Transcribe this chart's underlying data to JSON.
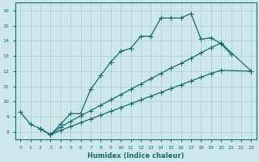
{
  "xlabel": "Humidex (Indice chaleur)",
  "bg_color": "#cde8e8",
  "grid_color": "#aacece",
  "line_color": "#1a6b6b",
  "xlim": [
    -0.5,
    23.5
  ],
  "ylim": [
    7.5,
    16.5
  ],
  "xticks": [
    0,
    1,
    2,
    3,
    4,
    5,
    6,
    7,
    8,
    9,
    10,
    11,
    12,
    13,
    14,
    15,
    16,
    17,
    18,
    19,
    20,
    21,
    22,
    23
  ],
  "yticks": [
    8,
    9,
    10,
    11,
    12,
    13,
    14,
    15,
    16
  ],
  "line1_x": [
    0,
    1,
    2,
    3,
    4,
    5,
    6,
    7,
    8,
    9,
    10,
    11,
    12,
    13,
    14,
    15,
    16,
    17,
    18,
    19,
    20,
    21
  ],
  "line1_y": [
    9.3,
    8.5,
    8.2,
    7.8,
    8.5,
    9.2,
    9.2,
    10.8,
    11.7,
    12.6,
    13.3,
    13.5,
    14.3,
    14.3,
    15.5,
    15.5,
    15.5,
    15.8,
    14.1,
    14.2,
    13.8,
    13.1
  ],
  "line2_x": [
    2,
    3,
    4,
    5,
    6,
    7,
    8,
    9,
    10,
    11,
    12,
    13,
    14,
    15,
    16,
    17,
    18,
    19,
    20,
    23
  ],
  "line2_y": [
    8.2,
    7.8,
    8.3,
    8.7,
    9.05,
    9.4,
    9.75,
    10.1,
    10.45,
    10.8,
    11.15,
    11.5,
    11.85,
    12.2,
    12.5,
    12.85,
    13.2,
    13.55,
    13.85,
    12.0
  ],
  "line3_x": [
    2,
    3,
    4,
    5,
    6,
    7,
    8,
    9,
    10,
    11,
    12,
    13,
    14,
    15,
    16,
    17,
    18,
    19,
    20,
    23
  ],
  "line3_y": [
    8.2,
    7.8,
    8.1,
    8.35,
    8.6,
    8.85,
    9.1,
    9.35,
    9.6,
    9.85,
    10.1,
    10.35,
    10.6,
    10.85,
    11.1,
    11.35,
    11.6,
    11.85,
    12.05,
    12.0
  ]
}
